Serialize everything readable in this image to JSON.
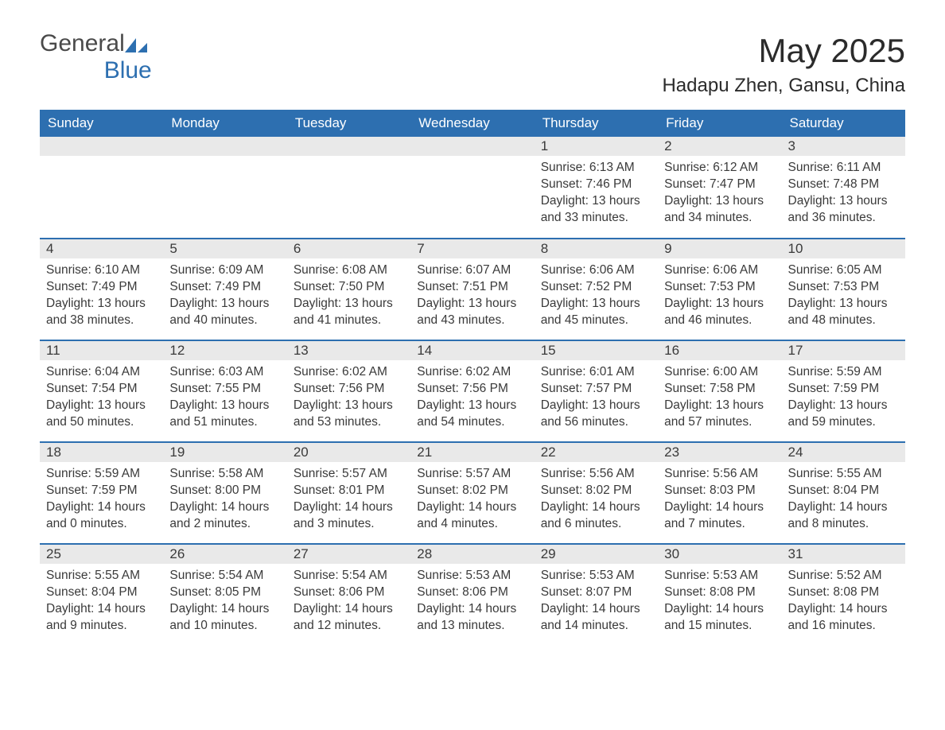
{
  "brand": {
    "general": "General",
    "blue": "Blue"
  },
  "title": "May 2025",
  "location": "Hadapu Zhen, Gansu, China",
  "theme": {
    "header_bg": "#2d6fb0",
    "header_fg": "#ffffff",
    "daynum_bg": "#e9e9e9",
    "border_color": "#2d6fb0",
    "page_bg": "#ffffff",
    "text_color": "#3a3a3a",
    "title_fontsize": 42,
    "location_fontsize": 24,
    "dayhead_fontsize": 17,
    "body_fontsize": 15.5
  },
  "day_headers": [
    "Sunday",
    "Monday",
    "Tuesday",
    "Wednesday",
    "Thursday",
    "Friday",
    "Saturday"
  ],
  "weeks": [
    [
      null,
      null,
      null,
      null,
      {
        "num": "1",
        "sunrise": "Sunrise: 6:13 AM",
        "sunset": "Sunset: 7:46 PM",
        "daylight": "Daylight: 13 hours and 33 minutes."
      },
      {
        "num": "2",
        "sunrise": "Sunrise: 6:12 AM",
        "sunset": "Sunset: 7:47 PM",
        "daylight": "Daylight: 13 hours and 34 minutes."
      },
      {
        "num": "3",
        "sunrise": "Sunrise: 6:11 AM",
        "sunset": "Sunset: 7:48 PM",
        "daylight": "Daylight: 13 hours and 36 minutes."
      }
    ],
    [
      {
        "num": "4",
        "sunrise": "Sunrise: 6:10 AM",
        "sunset": "Sunset: 7:49 PM",
        "daylight": "Daylight: 13 hours and 38 minutes."
      },
      {
        "num": "5",
        "sunrise": "Sunrise: 6:09 AM",
        "sunset": "Sunset: 7:49 PM",
        "daylight": "Daylight: 13 hours and 40 minutes."
      },
      {
        "num": "6",
        "sunrise": "Sunrise: 6:08 AM",
        "sunset": "Sunset: 7:50 PM",
        "daylight": "Daylight: 13 hours and 41 minutes."
      },
      {
        "num": "7",
        "sunrise": "Sunrise: 6:07 AM",
        "sunset": "Sunset: 7:51 PM",
        "daylight": "Daylight: 13 hours and 43 minutes."
      },
      {
        "num": "8",
        "sunrise": "Sunrise: 6:06 AM",
        "sunset": "Sunset: 7:52 PM",
        "daylight": "Daylight: 13 hours and 45 minutes."
      },
      {
        "num": "9",
        "sunrise": "Sunrise: 6:06 AM",
        "sunset": "Sunset: 7:53 PM",
        "daylight": "Daylight: 13 hours and 46 minutes."
      },
      {
        "num": "10",
        "sunrise": "Sunrise: 6:05 AM",
        "sunset": "Sunset: 7:53 PM",
        "daylight": "Daylight: 13 hours and 48 minutes."
      }
    ],
    [
      {
        "num": "11",
        "sunrise": "Sunrise: 6:04 AM",
        "sunset": "Sunset: 7:54 PM",
        "daylight": "Daylight: 13 hours and 50 minutes."
      },
      {
        "num": "12",
        "sunrise": "Sunrise: 6:03 AM",
        "sunset": "Sunset: 7:55 PM",
        "daylight": "Daylight: 13 hours and 51 minutes."
      },
      {
        "num": "13",
        "sunrise": "Sunrise: 6:02 AM",
        "sunset": "Sunset: 7:56 PM",
        "daylight": "Daylight: 13 hours and 53 minutes."
      },
      {
        "num": "14",
        "sunrise": "Sunrise: 6:02 AM",
        "sunset": "Sunset: 7:56 PM",
        "daylight": "Daylight: 13 hours and 54 minutes."
      },
      {
        "num": "15",
        "sunrise": "Sunrise: 6:01 AM",
        "sunset": "Sunset: 7:57 PM",
        "daylight": "Daylight: 13 hours and 56 minutes."
      },
      {
        "num": "16",
        "sunrise": "Sunrise: 6:00 AM",
        "sunset": "Sunset: 7:58 PM",
        "daylight": "Daylight: 13 hours and 57 minutes."
      },
      {
        "num": "17",
        "sunrise": "Sunrise: 5:59 AM",
        "sunset": "Sunset: 7:59 PM",
        "daylight": "Daylight: 13 hours and 59 minutes."
      }
    ],
    [
      {
        "num": "18",
        "sunrise": "Sunrise: 5:59 AM",
        "sunset": "Sunset: 7:59 PM",
        "daylight": "Daylight: 14 hours and 0 minutes."
      },
      {
        "num": "19",
        "sunrise": "Sunrise: 5:58 AM",
        "sunset": "Sunset: 8:00 PM",
        "daylight": "Daylight: 14 hours and 2 minutes."
      },
      {
        "num": "20",
        "sunrise": "Sunrise: 5:57 AM",
        "sunset": "Sunset: 8:01 PM",
        "daylight": "Daylight: 14 hours and 3 minutes."
      },
      {
        "num": "21",
        "sunrise": "Sunrise: 5:57 AM",
        "sunset": "Sunset: 8:02 PM",
        "daylight": "Daylight: 14 hours and 4 minutes."
      },
      {
        "num": "22",
        "sunrise": "Sunrise: 5:56 AM",
        "sunset": "Sunset: 8:02 PM",
        "daylight": "Daylight: 14 hours and 6 minutes."
      },
      {
        "num": "23",
        "sunrise": "Sunrise: 5:56 AM",
        "sunset": "Sunset: 8:03 PM",
        "daylight": "Daylight: 14 hours and 7 minutes."
      },
      {
        "num": "24",
        "sunrise": "Sunrise: 5:55 AM",
        "sunset": "Sunset: 8:04 PM",
        "daylight": "Daylight: 14 hours and 8 minutes."
      }
    ],
    [
      {
        "num": "25",
        "sunrise": "Sunrise: 5:55 AM",
        "sunset": "Sunset: 8:04 PM",
        "daylight": "Daylight: 14 hours and 9 minutes."
      },
      {
        "num": "26",
        "sunrise": "Sunrise: 5:54 AM",
        "sunset": "Sunset: 8:05 PM",
        "daylight": "Daylight: 14 hours and 10 minutes."
      },
      {
        "num": "27",
        "sunrise": "Sunrise: 5:54 AM",
        "sunset": "Sunset: 8:06 PM",
        "daylight": "Daylight: 14 hours and 12 minutes."
      },
      {
        "num": "28",
        "sunrise": "Sunrise: 5:53 AM",
        "sunset": "Sunset: 8:06 PM",
        "daylight": "Daylight: 14 hours and 13 minutes."
      },
      {
        "num": "29",
        "sunrise": "Sunrise: 5:53 AM",
        "sunset": "Sunset: 8:07 PM",
        "daylight": "Daylight: 14 hours and 14 minutes."
      },
      {
        "num": "30",
        "sunrise": "Sunrise: 5:53 AM",
        "sunset": "Sunset: 8:08 PM",
        "daylight": "Daylight: 14 hours and 15 minutes."
      },
      {
        "num": "31",
        "sunrise": "Sunrise: 5:52 AM",
        "sunset": "Sunset: 8:08 PM",
        "daylight": "Daylight: 14 hours and 16 minutes."
      }
    ]
  ]
}
